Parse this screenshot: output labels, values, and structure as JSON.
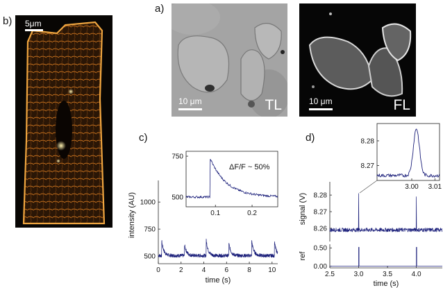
{
  "panels": {
    "a": "a)",
    "b": "b)",
    "c": "c)",
    "d": "d)"
  },
  "images": {
    "b_scale": "5μm",
    "tl_scale": "10 μm",
    "tl_label": "TL",
    "fl_scale": "10 μm",
    "fl_label": "FL"
  },
  "colors": {
    "trace": "#1b1f7a",
    "cell_orange": "#e8952a",
    "axis": "#222222"
  },
  "chart_data": [
    {
      "id": "c-main",
      "type": "line",
      "xlabel": "time (s)",
      "ylabel": "intensity (AU)",
      "xlim": [
        0,
        10.5
      ],
      "ylim": [
        430,
        1200
      ],
      "xticks": [
        0,
        2,
        4,
        6,
        8,
        10
      ],
      "yticks": [
        500,
        750,
        1000
      ],
      "baseline": 505,
      "spike_times": [
        0.3,
        2.3,
        4.2,
        6.2,
        8.2,
        10.2
      ],
      "spike_peaks": [
        640,
        610,
        655,
        620,
        650,
        635
      ],
      "series": [
        {
          "values": []
        }
      ]
    },
    {
      "id": "c-inset",
      "type": "line",
      "annotation": "ΔF/F ~ 50%",
      "xlim": [
        0.02,
        0.27
      ],
      "ylim": [
        440,
        780
      ],
      "xticks": [
        0.1,
        0.2
      ],
      "yticks": [
        500,
        750
      ],
      "rise_time": 0.085,
      "peak": 740,
      "baseline": 500
    },
    {
      "id": "d-signal",
      "type": "line",
      "xlabel": "time (s)",
      "ylabel": "signal (V)",
      "xlim": [
        2.5,
        4.45
      ],
      "ylim": [
        8.252,
        8.288
      ],
      "xticks": [
        2.5,
        3.0,
        3.5,
        4.0
      ],
      "yticks": [
        8.26,
        8.27,
        8.28
      ],
      "baseline": 8.259,
      "spike_times": [
        3.0,
        4.0
      ],
      "spike_peaks": [
        8.281,
        8.279
      ]
    },
    {
      "id": "d-ref",
      "type": "line",
      "ylabel": "ref",
      "xlim": [
        2.5,
        4.45
      ],
      "ylim": [
        -0.05,
        0.6
      ],
      "yticks": [
        0.0,
        0.5
      ],
      "yticklabels": [
        "0.00",
        "0.50"
      ],
      "xticklabels": [
        "2.5",
        "3.0",
        "3.5",
        "4.0"
      ],
      "pulse_times": [
        3.0,
        4.0
      ],
      "pulse_height": 0.52
    },
    {
      "id": "d-inset",
      "type": "line",
      "xlim": [
        2.985,
        3.012
      ],
      "ylim": [
        8.264,
        8.287
      ],
      "xticks": [
        3.0,
        3.01
      ],
      "xticklabels": [
        "3.00",
        "3.01"
      ],
      "yticks": [
        8.27,
        8.28
      ],
      "peak_time": 3.002,
      "peak": 8.285,
      "baseline": 8.266
    }
  ]
}
